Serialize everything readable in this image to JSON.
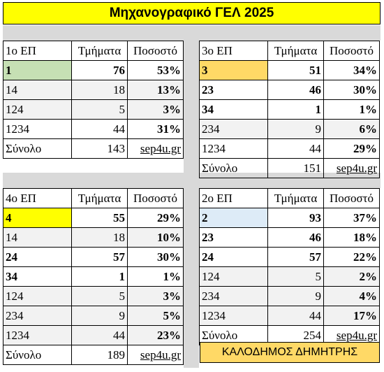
{
  "title": "Μηχανογραφικό ΓΕΛ 2025",
  "colors": {
    "title_bg": "#ffff00",
    "sign_bg": "#ffd966",
    "green": "#c6e0b4",
    "orange": "#ffd966",
    "yellow": "#ffff00",
    "blue": "#ddebf7",
    "band": "#d9d9d9"
  },
  "headers": {
    "col2": "Τμήματα",
    "col3": "Ποσοστό"
  },
  "total_label": "Σύνολο",
  "site": "sep4u.gr",
  "signature": "ΚΑΛΟΔΗΜΟΣ ΔΗΜΗΤΡΗΣ",
  "ep1": {
    "name": "1ο ΕΠ",
    "rows": [
      {
        "c": "1",
        "n": "76",
        "p": "53%"
      },
      {
        "c": "14",
        "n": "18",
        "p": "13%"
      },
      {
        "c": "124",
        "n": "5",
        "p": "3%"
      },
      {
        "c": "1234",
        "n": "44",
        "p": "31%"
      }
    ],
    "total": "143"
  },
  "ep3": {
    "name": "3ο ΕΠ",
    "rows": [
      {
        "c": "3",
        "n": "51",
        "p": "34%"
      },
      {
        "c": "23",
        "n": "46",
        "p": "30%"
      },
      {
        "c": "34",
        "n": "1",
        "p": "1%"
      },
      {
        "c": "234",
        "n": "9",
        "p": "6%"
      },
      {
        "c": "1234",
        "n": "44",
        "p": "29%"
      }
    ],
    "total": "151"
  },
  "ep4": {
    "name": "4ο ΕΠ",
    "rows": [
      {
        "c": "4",
        "n": "55",
        "p": "29%"
      },
      {
        "c": "14",
        "n": "18",
        "p": "10%"
      },
      {
        "c": "24",
        "n": "57",
        "p": "30%"
      },
      {
        "c": "34",
        "n": "1",
        "p": "1%"
      },
      {
        "c": "124",
        "n": "5",
        "p": "3%"
      },
      {
        "c": "234",
        "n": "9",
        "p": "5%"
      },
      {
        "c": "1234",
        "n": "44",
        "p": "23%"
      }
    ],
    "total": "189"
  },
  "ep2": {
    "name": "2ο ΕΠ",
    "rows": [
      {
        "c": "2",
        "n": "93",
        "p": "37%"
      },
      {
        "c": "23",
        "n": "46",
        "p": "18%"
      },
      {
        "c": "24",
        "n": "57",
        "p": "22%"
      },
      {
        "c": "124",
        "n": "5",
        "p": "2%"
      },
      {
        "c": "234",
        "n": "9",
        "p": "4%"
      },
      {
        "c": "1234",
        "n": "44",
        "p": "17%"
      }
    ],
    "total": "254"
  }
}
